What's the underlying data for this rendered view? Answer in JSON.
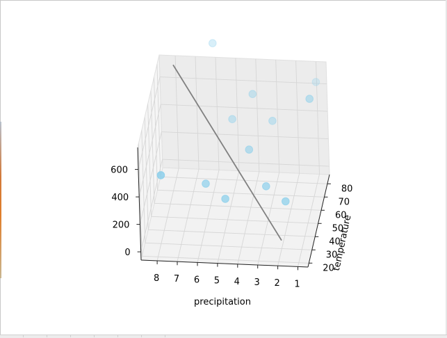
{
  "chart_data": {
    "type": "scatter",
    "title": "",
    "xlabel": "precipitation",
    "ylabel": "temperature",
    "zlabel": "",
    "x_ticks": [
      1,
      2,
      3,
      4,
      5,
      6,
      7,
      8
    ],
    "y_ticks": [
      20,
      30,
      40,
      50,
      60,
      70,
      80
    ],
    "z_ticks": [
      0,
      200,
      400,
      600
    ],
    "xlim": [
      0.5,
      8.8
    ],
    "ylim": [
      17,
      87
    ],
    "zlim": [
      -60,
      760
    ],
    "grid": true,
    "points": [
      {
        "x": 2,
        "y": 45,
        "z": 140
      },
      {
        "x": 3,
        "y": 48,
        "z": 215
      },
      {
        "x": 5,
        "y": 45,
        "z": 140
      },
      {
        "x": 6,
        "y": 48,
        "z": 215
      },
      {
        "x": 4,
        "y": 60,
        "z": 360
      },
      {
        "x": 8,
        "y": 35,
        "z": 390
      },
      {
        "x": 5,
        "y": 72,
        "z": 460
      },
      {
        "x": 3,
        "y": 72,
        "z": 460
      },
      {
        "x": 4,
        "y": 75,
        "z": 620
      },
      {
        "x": 1,
        "y": 65,
        "z": 700
      },
      {
        "x": 1,
        "y": 85,
        "z": 630
      },
      {
        "x": 6,
        "y": 80,
        "z": 930
      }
    ],
    "line": [
      {
        "x": 2,
        "y": 30,
        "z": 0
      },
      {
        "x": 8,
        "y": 80,
        "z": 760
      }
    ],
    "colors": {
      "points": "#87ceeb",
      "line": "#808080"
    }
  }
}
